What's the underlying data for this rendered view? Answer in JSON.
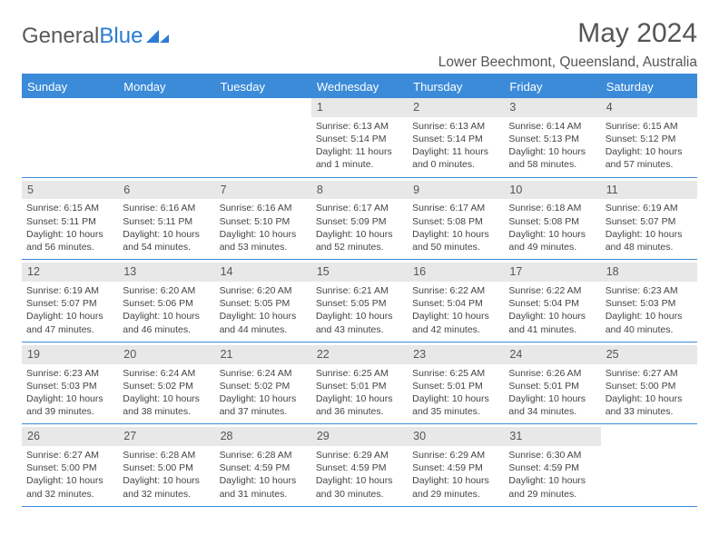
{
  "logo": {
    "text1": "General",
    "text2": "Blue"
  },
  "title": "May 2024",
  "location": "Lower Beechmont, Queensland, Australia",
  "colors": {
    "header_bg": "#3b8bd9",
    "daynum_bg": "#e8e8e8",
    "text": "#444",
    "title_text": "#555"
  },
  "day_headers": [
    "Sunday",
    "Monday",
    "Tuesday",
    "Wednesday",
    "Thursday",
    "Friday",
    "Saturday"
  ],
  "weeks": [
    [
      null,
      null,
      null,
      {
        "n": "1",
        "sr": "6:13 AM",
        "ss": "5:14 PM",
        "dl": "11 hours and 1 minute."
      },
      {
        "n": "2",
        "sr": "6:13 AM",
        "ss": "5:14 PM",
        "dl": "11 hours and 0 minutes."
      },
      {
        "n": "3",
        "sr": "6:14 AM",
        "ss": "5:13 PM",
        "dl": "10 hours and 58 minutes."
      },
      {
        "n": "4",
        "sr": "6:15 AM",
        "ss": "5:12 PM",
        "dl": "10 hours and 57 minutes."
      }
    ],
    [
      {
        "n": "5",
        "sr": "6:15 AM",
        "ss": "5:11 PM",
        "dl": "10 hours and 56 minutes."
      },
      {
        "n": "6",
        "sr": "6:16 AM",
        "ss": "5:11 PM",
        "dl": "10 hours and 54 minutes."
      },
      {
        "n": "7",
        "sr": "6:16 AM",
        "ss": "5:10 PM",
        "dl": "10 hours and 53 minutes."
      },
      {
        "n": "8",
        "sr": "6:17 AM",
        "ss": "5:09 PM",
        "dl": "10 hours and 52 minutes."
      },
      {
        "n": "9",
        "sr": "6:17 AM",
        "ss": "5:08 PM",
        "dl": "10 hours and 50 minutes."
      },
      {
        "n": "10",
        "sr": "6:18 AM",
        "ss": "5:08 PM",
        "dl": "10 hours and 49 minutes."
      },
      {
        "n": "11",
        "sr": "6:19 AM",
        "ss": "5:07 PM",
        "dl": "10 hours and 48 minutes."
      }
    ],
    [
      {
        "n": "12",
        "sr": "6:19 AM",
        "ss": "5:07 PM",
        "dl": "10 hours and 47 minutes."
      },
      {
        "n": "13",
        "sr": "6:20 AM",
        "ss": "5:06 PM",
        "dl": "10 hours and 46 minutes."
      },
      {
        "n": "14",
        "sr": "6:20 AM",
        "ss": "5:05 PM",
        "dl": "10 hours and 44 minutes."
      },
      {
        "n": "15",
        "sr": "6:21 AM",
        "ss": "5:05 PM",
        "dl": "10 hours and 43 minutes."
      },
      {
        "n": "16",
        "sr": "6:22 AM",
        "ss": "5:04 PM",
        "dl": "10 hours and 42 minutes."
      },
      {
        "n": "17",
        "sr": "6:22 AM",
        "ss": "5:04 PM",
        "dl": "10 hours and 41 minutes."
      },
      {
        "n": "18",
        "sr": "6:23 AM",
        "ss": "5:03 PM",
        "dl": "10 hours and 40 minutes."
      }
    ],
    [
      {
        "n": "19",
        "sr": "6:23 AM",
        "ss": "5:03 PM",
        "dl": "10 hours and 39 minutes."
      },
      {
        "n": "20",
        "sr": "6:24 AM",
        "ss": "5:02 PM",
        "dl": "10 hours and 38 minutes."
      },
      {
        "n": "21",
        "sr": "6:24 AM",
        "ss": "5:02 PM",
        "dl": "10 hours and 37 minutes."
      },
      {
        "n": "22",
        "sr": "6:25 AM",
        "ss": "5:01 PM",
        "dl": "10 hours and 36 minutes."
      },
      {
        "n": "23",
        "sr": "6:25 AM",
        "ss": "5:01 PM",
        "dl": "10 hours and 35 minutes."
      },
      {
        "n": "24",
        "sr": "6:26 AM",
        "ss": "5:01 PM",
        "dl": "10 hours and 34 minutes."
      },
      {
        "n": "25",
        "sr": "6:27 AM",
        "ss": "5:00 PM",
        "dl": "10 hours and 33 minutes."
      }
    ],
    [
      {
        "n": "26",
        "sr": "6:27 AM",
        "ss": "5:00 PM",
        "dl": "10 hours and 32 minutes."
      },
      {
        "n": "27",
        "sr": "6:28 AM",
        "ss": "5:00 PM",
        "dl": "10 hours and 32 minutes."
      },
      {
        "n": "28",
        "sr": "6:28 AM",
        "ss": "4:59 PM",
        "dl": "10 hours and 31 minutes."
      },
      {
        "n": "29",
        "sr": "6:29 AM",
        "ss": "4:59 PM",
        "dl": "10 hours and 30 minutes."
      },
      {
        "n": "30",
        "sr": "6:29 AM",
        "ss": "4:59 PM",
        "dl": "10 hours and 29 minutes."
      },
      {
        "n": "31",
        "sr": "6:30 AM",
        "ss": "4:59 PM",
        "dl": "10 hours and 29 minutes."
      },
      null
    ]
  ],
  "labels": {
    "sunrise": "Sunrise: ",
    "sunset": "Sunset: ",
    "daylight": "Daylight: "
  }
}
